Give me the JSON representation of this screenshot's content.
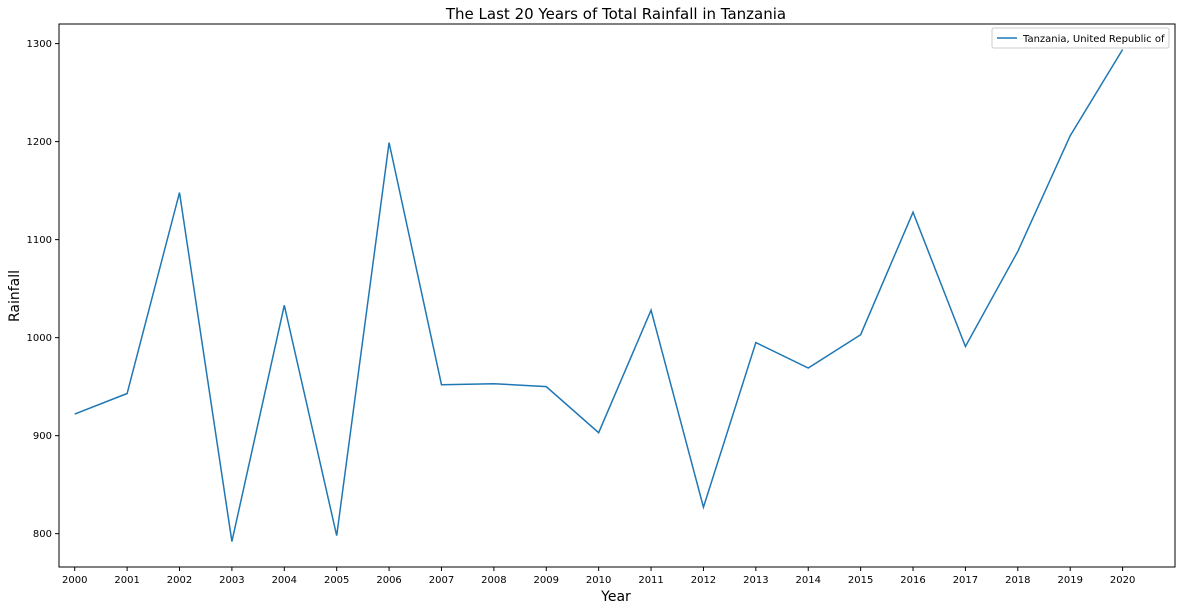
{
  "chart_data": {
    "type": "line",
    "title": "The Last 20 Years of Total Rainfall in Tanzania",
    "xlabel": "Year",
    "ylabel": "Rainfall",
    "x": [
      2000,
      2001,
      2002,
      2003,
      2004,
      2005,
      2006,
      2007,
      2008,
      2009,
      2010,
      2011,
      2012,
      2013,
      2014,
      2015,
      2016,
      2017,
      2018,
      2019,
      2020
    ],
    "x_tick_labels": [
      "2000",
      "2001",
      "2002",
      "2003",
      "2004",
      "2005",
      "2006",
      "2007",
      "2008",
      "2009",
      "2010",
      "2011",
      "2012",
      "2013",
      "2014",
      "2015",
      "2016",
      "2017",
      "2018",
      "2019",
      "2020"
    ],
    "y_ticks": [
      800,
      900,
      1000,
      1100,
      1200,
      1300
    ],
    "y_tick_labels": [
      "800",
      "900",
      "1000",
      "1100",
      "1200",
      "1300"
    ],
    "xlim": [
      1999.7,
      2021
    ],
    "ylim": [
      766,
      1320
    ],
    "series": [
      {
        "name": "Tanzania, United Republic of",
        "color": "#1f77b4",
        "values": [
          922,
          943,
          1148,
          792,
          1033,
          798,
          1199,
          952,
          953,
          950,
          903,
          1028,
          827,
          995,
          969,
          1003,
          1128,
          991,
          1088,
          1206,
          1294
        ]
      }
    ],
    "legend": {
      "position": "top-right"
    },
    "grid": false
  }
}
